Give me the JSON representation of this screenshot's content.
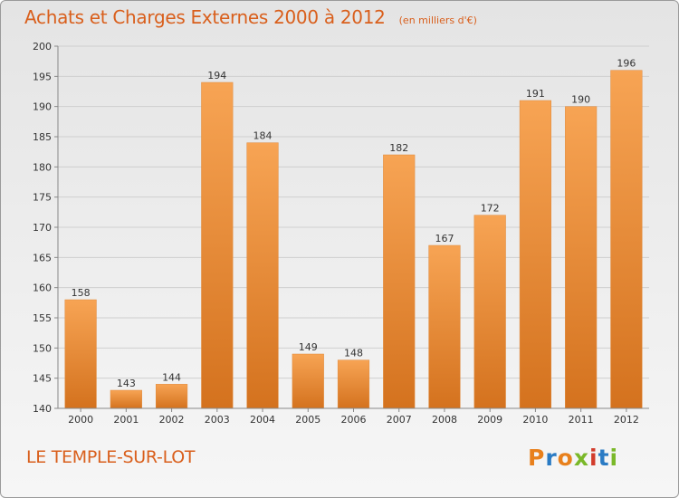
{
  "title": "Achats et Charges Externes 2000 à 2012",
  "subtitle": "(en milliers d'€)",
  "location": "LE TEMPLE-SUR-LOT",
  "brand": "Proxiti",
  "colors": {
    "title": "#d95f1c",
    "bar_light": "#f7a454",
    "bar_dark": "#d4721e",
    "brand_letters": [
      "#e8801c",
      "#2a7bc4",
      "#e8801c",
      "#7ab829",
      "#d23c2c",
      "#2a7bc4",
      "#7ab829"
    ]
  },
  "chart_data": {
    "type": "bar",
    "title": "Achats et Charges Externes 2000 à 2012",
    "subtitle": "(en milliers d'€)",
    "xlabel": "",
    "ylabel": "",
    "categories": [
      "2000",
      "2001",
      "2002",
      "2003",
      "2004",
      "2005",
      "2006",
      "2007",
      "2008",
      "2009",
      "2010",
      "2011",
      "2012"
    ],
    "values": [
      158,
      143,
      144,
      194,
      184,
      149,
      148,
      182,
      167,
      172,
      191,
      190,
      196
    ],
    "ylim": [
      140,
      200
    ],
    "yticks": [
      140,
      145,
      150,
      155,
      160,
      165,
      170,
      175,
      180,
      185,
      190,
      195,
      200
    ],
    "grid": true,
    "legend": "none"
  }
}
